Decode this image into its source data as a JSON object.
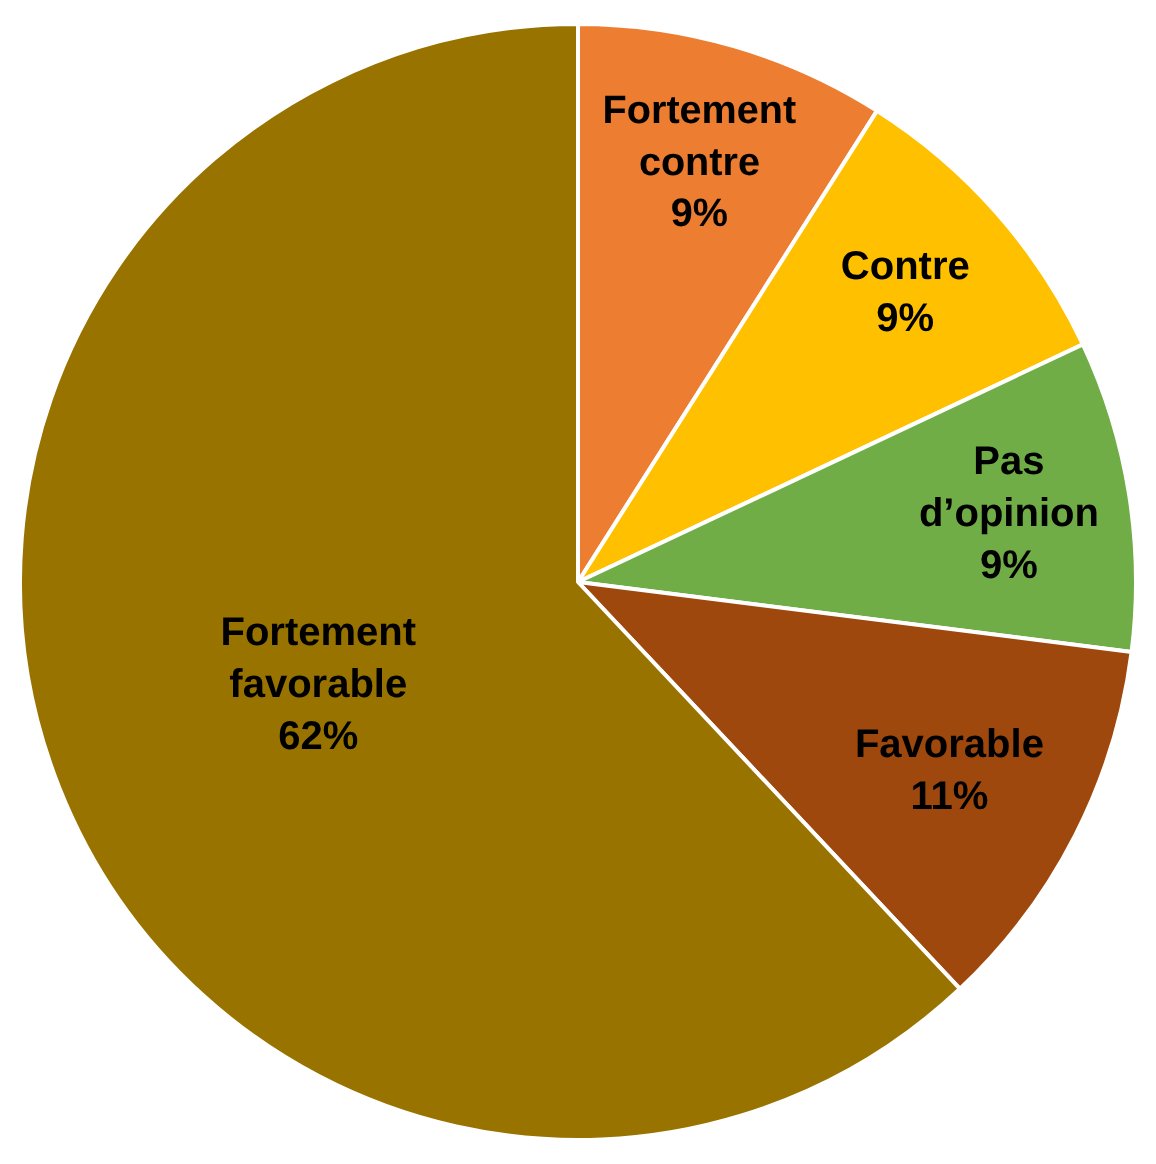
{
  "chart_data": {
    "type": "pie",
    "categories": [
      "Fortement contre",
      "Contre",
      "Pas d’opinion",
      "Favorable",
      "Fortement favorable"
    ],
    "values": [
      9,
      9,
      9,
      11,
      62
    ],
    "value_labels": [
      "9%",
      "9%",
      "9%",
      "11%",
      "62%"
    ],
    "colors": [
      "#ed7d31",
      "#ffc000",
      "#70ad47",
      "#9e480e",
      "#997300"
    ],
    "legend": false
  }
}
